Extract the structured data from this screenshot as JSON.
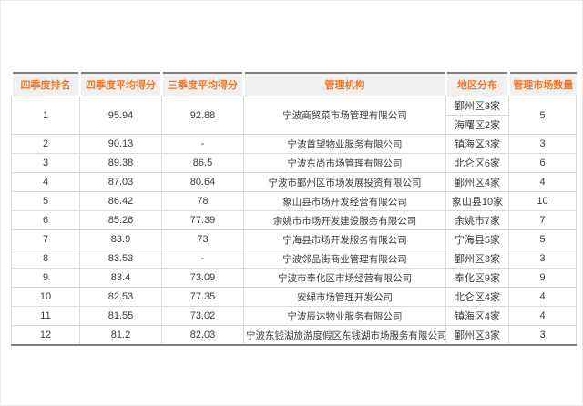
{
  "colors": {
    "header_text": "#f0782d",
    "header_bg": "#f0f0f0",
    "border_dark": "#7f7f7f",
    "border_light": "#d9d9d9",
    "body_text": "#3b3b3b"
  },
  "chart_data": {
    "type": "table",
    "columns": [
      "四季度排名",
      "四季度平均得分",
      "三季度平均得分",
      "管理机构",
      "地区分布",
      "管理市场数量"
    ],
    "rows": [
      {
        "rank": "1",
        "q4_score": "95.94",
        "q3_score": "92.88",
        "organization": "宁波商贸菜市场管理有限公司",
        "regions": [
          "鄞州区3家",
          "海曙区2家"
        ],
        "market_count": "5"
      },
      {
        "rank": "2",
        "q4_score": "90.13",
        "q3_score": "-",
        "organization": "宁波首望物业服务有限公司",
        "regions": [
          "镇海区3家"
        ],
        "market_count": "3"
      },
      {
        "rank": "3",
        "q4_score": "89.38",
        "q3_score": "86.5",
        "organization": "宁波东尚市场管理有限公司",
        "regions": [
          "北仑区6家"
        ],
        "market_count": "6"
      },
      {
        "rank": "4",
        "q4_score": "87.03",
        "q3_score": "80.64",
        "organization": "宁波市鄞州区市场发展投资有限公司",
        "regions": [
          "鄞州区4家"
        ],
        "market_count": "4"
      },
      {
        "rank": "5",
        "q4_score": "86.42",
        "q3_score": "78",
        "organization": "象山县市场开发经营有限公司",
        "regions": [
          "象山县10家"
        ],
        "market_count": "10"
      },
      {
        "rank": "6",
        "q4_score": "85.26",
        "q3_score": "77.39",
        "organization": "余姚市市场开发建设服务有限公司",
        "regions": [
          "余姚市7家"
        ],
        "market_count": "7"
      },
      {
        "rank": "7",
        "q4_score": "83.9",
        "q3_score": "73",
        "organization": "宁海县市场开发服务有限公司",
        "regions": [
          "宁海县5家"
        ],
        "market_count": "5"
      },
      {
        "rank": "8",
        "q4_score": "83.53",
        "q3_score": "-",
        "organization": "宁波邻品街商业管理有限公司",
        "regions": [
          "鄞州区3家"
        ],
        "market_count": "3"
      },
      {
        "rank": "9",
        "q4_score": "83.4",
        "q3_score": "73.09",
        "organization": "宁波市奉化区市场经营有限公司",
        "regions": [
          "奉化区9家"
        ],
        "market_count": "9"
      },
      {
        "rank": "10",
        "q4_score": "82.53",
        "q3_score": "77.35",
        "organization": "安绿市场管理开发公司",
        "regions": [
          "北仑区4家"
        ],
        "market_count": "4"
      },
      {
        "rank": "11",
        "q4_score": "81.55",
        "q3_score": "73.02",
        "organization": "宁波辰达物业服务有限公司",
        "regions": [
          "镇海区4家"
        ],
        "market_count": "4"
      },
      {
        "rank": "12",
        "q4_score": "81.2",
        "q3_score": "82.03",
        "organization": "宁波东钱湖旅游度假区东钱湖市场服务有限公司",
        "regions": [
          "鄞州区3家"
        ],
        "market_count": "3"
      }
    ]
  }
}
